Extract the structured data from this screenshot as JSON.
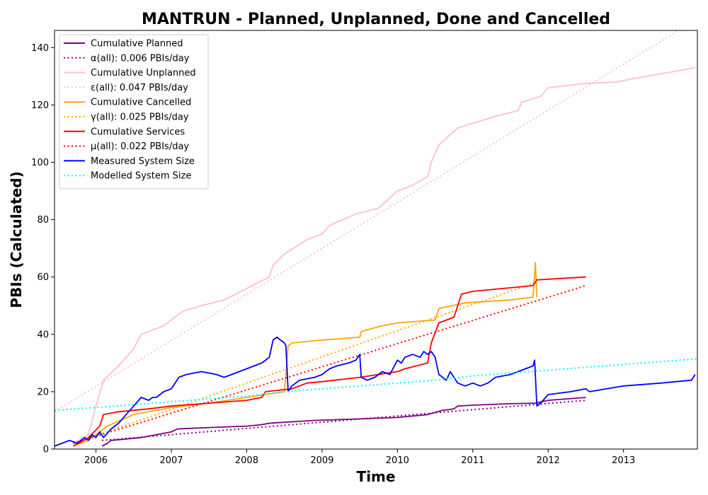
{
  "chart_data": {
    "type": "line",
    "title": "MANTRUN - Planned, Unplanned, Done  and Cancelled",
    "xlabel": "Time",
    "ylabel": "PBIs (Calculated)",
    "xlim": [
      2005.45,
      2013.98
    ],
    "ylim": [
      0,
      146
    ],
    "x_ticks": [
      2006,
      2007,
      2008,
      2009,
      2010,
      2011,
      2012,
      2013
    ],
    "x_tick_labels": [
      "2006",
      "2007",
      "2008",
      "2009",
      "2010",
      "2011",
      "2012",
      "2013"
    ],
    "y_ticks": [
      0,
      20,
      40,
      60,
      80,
      100,
      120,
      140
    ],
    "y_tick_labels": [
      "0",
      "20",
      "40",
      "60",
      "80",
      "100",
      "120",
      "140"
    ],
    "grid": false,
    "legend_position": "upper-left",
    "series": [
      {
        "name": "Cumulative Planned",
        "color": "#800080",
        "style": "solid",
        "x": [
          2006.08,
          2006.15,
          2006.2,
          2006.6,
          2006.8,
          2007.0,
          2007.08,
          2007.5,
          2008.0,
          2008.2,
          2008.3,
          2008.9,
          2009.5,
          2010.0,
          2010.4,
          2010.6,
          2010.75,
          2010.8,
          2011.0,
          2011.5,
          2011.83,
          2012.0,
          2012.5
        ],
        "y": [
          1,
          2,
          3,
          4,
          5,
          6,
          7,
          7.5,
          8,
          8.5,
          9,
          10,
          10.5,
          11,
          12,
          13.5,
          14,
          15,
          15.3,
          15.8,
          16,
          17,
          18
        ]
      },
      {
        "name": "α(all): 0.006 PBIs/day",
        "color": "#800080",
        "style": "dotted",
        "x": [
          2006.08,
          2012.5
        ],
        "y": [
          3,
          17
        ]
      },
      {
        "name": "Cumulative Unplanned",
        "color": "#ffc0cb",
        "style": "solid",
        "x": [
          2005.7,
          2005.9,
          2006.0,
          2006.1,
          2006.3,
          2006.5,
          2006.6,
          2006.9,
          2007.0,
          2007.15,
          2007.4,
          2007.7,
          2008.0,
          2008.3,
          2008.35,
          2008.5,
          2008.8,
          2009.0,
          2009.1,
          2009.45,
          2009.75,
          2010.0,
          2010.2,
          2010.4,
          2010.45,
          2010.55,
          2010.8,
          2011.3,
          2011.6,
          2011.65,
          2011.9,
          2012.0,
          2012.5,
          2012.9,
          2013.1,
          2013.95
        ],
        "y": [
          2,
          5,
          15,
          24,
          29,
          35,
          40,
          43,
          45,
          48,
          50,
          52,
          56,
          60,
          64,
          68,
          73,
          75,
          78,
          82,
          84,
          90,
          92,
          95,
          100,
          106,
          112,
          116,
          118,
          121,
          123,
          126,
          127.5,
          128,
          129,
          133
        ]
      },
      {
        "name": "ε(all): 0.047 PBIs/day",
        "color": "#ffc0cb",
        "style": "dotted",
        "x": [
          2005.45,
          2013.98
        ],
        "y": [
          13,
          150
        ]
      },
      {
        "name": "Cumulative Cancelled",
        "color": "#ffa500",
        "style": "solid",
        "x": [
          2005.7,
          2005.9,
          2006.05,
          2006.15,
          2006.5,
          2007.0,
          2007.5,
          2008.0,
          2008.5,
          2008.55,
          2008.6,
          2009.0,
          2009.5,
          2009.52,
          2009.8,
          2010.0,
          2010.5,
          2010.55,
          2010.9,
          2011.5,
          2011.8,
          2011.83,
          2011.85
        ],
        "y": [
          1,
          3,
          6,
          8,
          12,
          14.5,
          16,
          18,
          20,
          36,
          37,
          38,
          39,
          41,
          43,
          44,
          45,
          49,
          51,
          52,
          53,
          65,
          53
        ]
      },
      {
        "name": "γ(all): 0.025 PBIs/day",
        "color": "#ffa500",
        "style": "dotted",
        "x": [
          2005.7,
          2011.83
        ],
        "y": [
          2,
          58
        ]
      },
      {
        "name": "Cumulative Services",
        "color": "#ff0000",
        "style": "solid",
        "x": [
          2005.7,
          2005.9,
          2006.05,
          2006.1,
          2006.3,
          2006.7,
          2007.0,
          2007.5,
          2008.0,
          2008.2,
          2008.25,
          2008.6,
          2008.8,
          2009.0,
          2009.5,
          2010.0,
          2010.1,
          2010.4,
          2010.45,
          2010.55,
          2010.75,
          2010.85,
          2011.0,
          2011.8,
          2011.85,
          2012.5
        ],
        "y": [
          1,
          4,
          8,
          12,
          13,
          14,
          15,
          16,
          17,
          18,
          20,
          21,
          23,
          23.5,
          25,
          27,
          28,
          30,
          37,
          44,
          46,
          54,
          55,
          57,
          59,
          60
        ]
      },
      {
        "name": "μ(all): 0.022 PBIs/day",
        "color": "#ff0000",
        "style": "dotted",
        "x": [
          2005.7,
          2012.5
        ],
        "y": [
          2,
          57
        ]
      },
      {
        "name": "Measured System Size",
        "color": "#0000ff",
        "style": "solid",
        "x": [
          2005.45,
          2005.65,
          2005.75,
          2005.8,
          2005.85,
          2005.9,
          2005.95,
          2006.0,
          2006.05,
          2006.1,
          2006.2,
          2006.3,
          2006.4,
          2006.5,
          2006.6,
          2006.7,
          2006.75,
          2006.8,
          2006.9,
          2007.0,
          2007.1,
          2007.2,
          2007.4,
          2007.6,
          2007.7,
          2007.8,
          2007.9,
          2008.0,
          2008.1,
          2008.2,
          2008.3,
          2008.35,
          2008.4,
          2008.5,
          2008.52,
          2008.55,
          2008.6,
          2008.7,
          2008.9,
          2009.0,
          2009.1,
          2009.2,
          2009.35,
          2009.45,
          2009.5,
          2009.52,
          2009.6,
          2009.7,
          2009.8,
          2009.9,
          2010.0,
          2010.05,
          2010.1,
          2010.2,
          2010.3,
          2010.35,
          2010.4,
          2010.45,
          2010.5,
          2010.55,
          2010.6,
          2010.65,
          2010.7,
          2010.75,
          2010.8,
          2010.9,
          2011.0,
          2011.1,
          2011.2,
          2011.3,
          2011.5,
          2011.7,
          2011.8,
          2011.82,
          2011.85,
          2011.9,
          2012.0,
          2012.3,
          2012.5,
          2012.55,
          2013.0,
          2013.5,
          2013.9,
          2013.95
        ],
        "y": [
          1,
          3,
          2,
          3,
          4,
          3,
          5,
          4,
          6,
          4,
          7,
          9,
          12,
          15,
          18,
          17,
          18,
          18,
          20,
          21,
          25,
          26,
          27,
          26,
          25,
          26,
          27,
          28,
          29,
          30,
          32,
          38,
          39,
          37,
          36,
          20,
          22,
          24,
          25,
          26,
          28,
          29,
          30,
          31,
          33,
          25,
          24,
          25,
          27,
          26,
          31,
          30,
          32,
          33,
          32,
          34,
          33,
          34,
          32,
          26,
          25,
          24,
          27,
          25,
          23,
          22,
          23,
          22,
          23,
          25,
          26,
          28,
          29,
          31,
          15,
          16,
          19,
          20,
          21,
          20,
          22,
          23,
          24,
          26
        ]
      },
      {
        "name": "Modelled System Size",
        "color": "#00ffff",
        "style": "dotted",
        "x": [
          2005.45,
          2006.0,
          2006.5,
          2007.0,
          2007.5,
          2008.0,
          2008.5,
          2009.0,
          2009.5,
          2010.0,
          2010.5,
          2011.0,
          2011.5,
          2012.0,
          2012.5,
          2013.0,
          2013.5,
          2013.98
        ],
        "y": [
          13.5,
          14.5,
          15.5,
          16.5,
          17.5,
          18.5,
          20,
          21,
          22,
          23,
          24,
          25.5,
          26.5,
          27.5,
          28.5,
          29.5,
          30.5,
          31.5
        ]
      }
    ]
  }
}
